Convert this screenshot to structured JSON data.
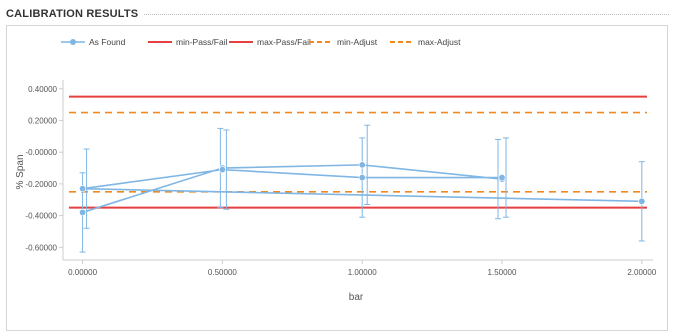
{
  "panel": {
    "title": "CALIBRATION RESULTS"
  },
  "chart_data": {
    "type": "line",
    "xlabel": "bar",
    "ylabel": "% Span",
    "xlim": [
      -0.07,
      2.04
    ],
    "ylim": [
      -0.68,
      0.43
    ],
    "x_ticks": [
      "0.00000",
      "0.50000",
      "1.00000",
      "1.50000",
      "2.00000"
    ],
    "y_ticks": [
      "0.40000",
      "0.20000",
      "-0.00000",
      "-0.20000",
      "-0.40000",
      "-0.60000"
    ],
    "legend_position": "top-left",
    "grid": false,
    "colors": {
      "as_found": "#7fb6e3",
      "pass_fail": "#e53f3f",
      "adjust": "#f08a1e",
      "axis": "#cccccc"
    },
    "series": [
      {
        "name": "As Found",
        "style": "line-markers-errorbars",
        "x": [
          0.0,
          0.5,
          1.0,
          1.5,
          1.5,
          1.0,
          0.5,
          0.0,
          2.0
        ],
        "y": [
          -0.38,
          -0.1,
          -0.08,
          -0.17,
          -0.16,
          -0.16,
          -0.11,
          -0.23,
          -0.31
        ],
        "error": [
          0.25,
          0.25,
          0.25,
          0.25,
          0.25,
          0.25,
          0.25,
          0.25,
          0.25
        ]
      },
      {
        "name": "min-Pass/Fail",
        "style": "solid",
        "y": -0.35
      },
      {
        "name": "max-Pass/Fail",
        "style": "solid",
        "y": 0.35
      },
      {
        "name": "min-Adjust",
        "style": "dashed",
        "y": -0.25
      },
      {
        "name": "max-Adjust",
        "style": "dashed",
        "y": 0.25
      }
    ]
  }
}
